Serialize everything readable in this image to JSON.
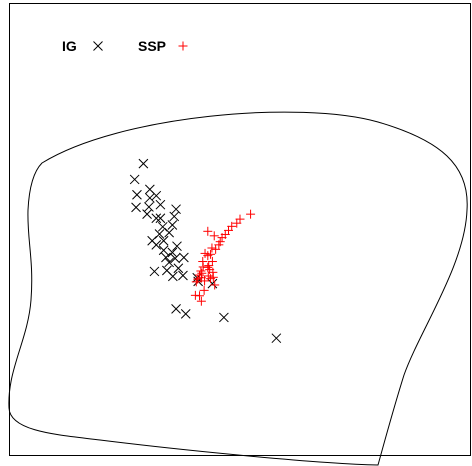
{
  "chart_data": {
    "type": "scatter",
    "title": "",
    "xlabel": "",
    "ylabel": "",
    "xlim": [
      0,
      100
    ],
    "ylim": [
      0,
      100
    ],
    "grid": false,
    "legend_position": "top-left",
    "series": [
      {
        "name": "IG",
        "marker": "x",
        "color": "#000000",
        "points": [
          [
            29.0,
            64.6
          ],
          [
            27.1,
            61.1
          ],
          [
            30.4,
            58.9
          ],
          [
            27.6,
            57.7
          ],
          [
            31.8,
            57.5
          ],
          [
            30.4,
            57.0
          ],
          [
            32.7,
            55.5
          ],
          [
            27.4,
            54.9
          ],
          [
            30.2,
            55.0
          ],
          [
            36.1,
            54.5
          ],
          [
            32.7,
            52.5
          ],
          [
            29.8,
            53.4
          ],
          [
            31.8,
            52.5
          ],
          [
            35.7,
            52.9
          ],
          [
            33.2,
            50.6
          ],
          [
            35.3,
            51.0
          ],
          [
            32.5,
            49.0
          ],
          [
            34.6,
            49.3
          ],
          [
            33.4,
            47.5
          ],
          [
            30.9,
            47.5
          ],
          [
            31.8,
            46.6
          ],
          [
            36.3,
            46.3
          ],
          [
            33.4,
            45.4
          ],
          [
            35.3,
            44.9
          ],
          [
            33.9,
            43.8
          ],
          [
            35.9,
            43.6
          ],
          [
            34.6,
            42.7
          ],
          [
            37.8,
            43.8
          ],
          [
            36.6,
            41.4
          ],
          [
            31.4,
            40.7
          ],
          [
            34.1,
            40.9
          ],
          [
            35.4,
            39.6
          ],
          [
            37.6,
            39.8
          ],
          [
            40.7,
            39.3
          ],
          [
            40.9,
            38.5
          ],
          [
            44.0,
            38.0
          ],
          [
            36.1,
            32.4
          ],
          [
            38.2,
            31.3
          ],
          [
            46.5,
            30.5
          ],
          [
            57.9,
            25.9
          ]
        ]
      },
      {
        "name": "SSP",
        "marker": "+",
        "color": "#ff0000",
        "points": [
          [
            52.3,
            53.4
          ],
          [
            50.0,
            52.3
          ],
          [
            49.3,
            51.4
          ],
          [
            48.2,
            50.7
          ],
          [
            47.5,
            49.8
          ],
          [
            46.8,
            48.9
          ],
          [
            43.0,
            49.6
          ],
          [
            44.4,
            48.6
          ],
          [
            46.1,
            48.2
          ],
          [
            45.7,
            47.3
          ],
          [
            45.4,
            46.6
          ],
          [
            44.7,
            45.6
          ],
          [
            43.9,
            45.9
          ],
          [
            43.6,
            44.5
          ],
          [
            43.0,
            44.2
          ],
          [
            42.4,
            44.7
          ],
          [
            44.0,
            42.9
          ],
          [
            41.9,
            42.9
          ],
          [
            43.2,
            42.0
          ],
          [
            41.7,
            40.3
          ],
          [
            44.1,
            40.5
          ],
          [
            43.4,
            41.1
          ],
          [
            42.0,
            41.7
          ],
          [
            41.5,
            40.8
          ],
          [
            43.0,
            41.6
          ],
          [
            41.2,
            39.9
          ],
          [
            43.1,
            39.7
          ],
          [
            41.6,
            39.3
          ],
          [
            40.8,
            39.0
          ],
          [
            43.6,
            39.1
          ],
          [
            44.2,
            39.4
          ],
          [
            42.3,
            38.6
          ],
          [
            40.5,
            38.4
          ],
          [
            44.5,
            37.7
          ],
          [
            42.2,
            36.5
          ],
          [
            41.2,
            35.3
          ],
          [
            40.3,
            35.4
          ],
          [
            41.6,
            34.1
          ]
        ]
      }
    ]
  }
}
